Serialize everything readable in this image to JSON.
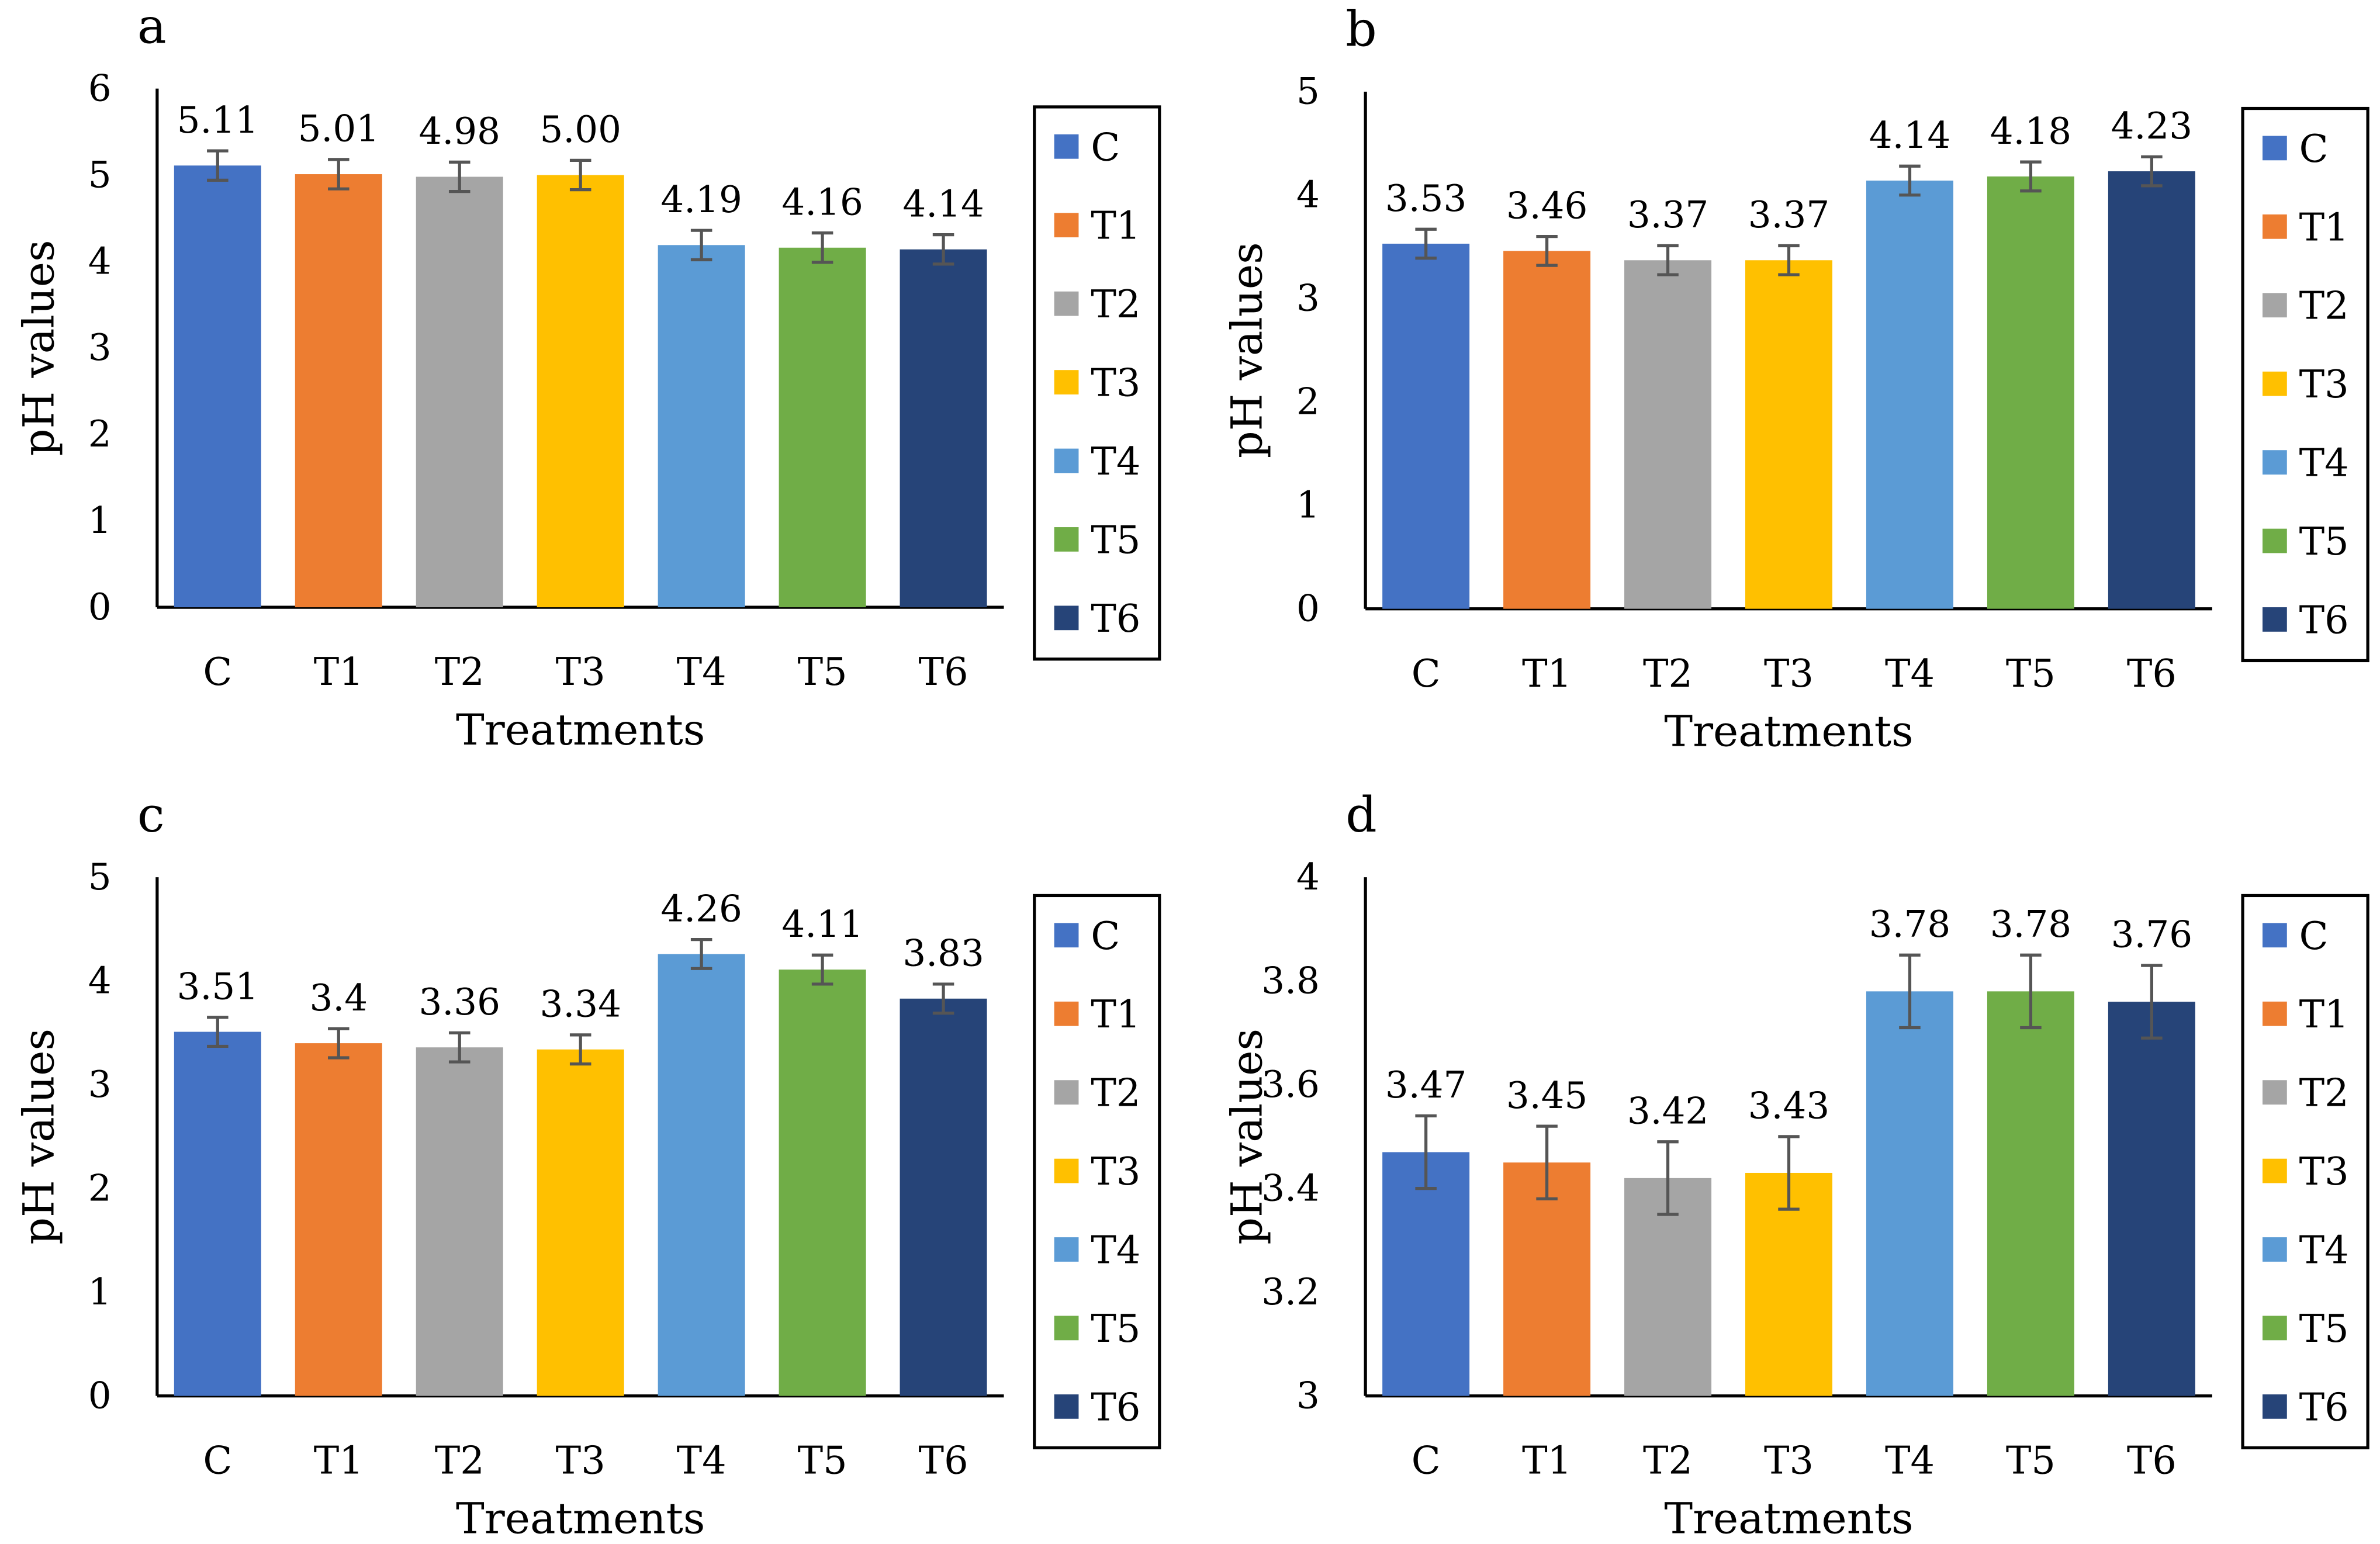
{
  "colors": {
    "C": "#4472C4",
    "T1": "#ED7D31",
    "T2": "#A5A5A5",
    "T3": "#FFC000",
    "T4": "#5B9BD5",
    "T5": "#70AD47",
    "T6": "#264478",
    "error": "#555555"
  },
  "chart_data": [
    {
      "type": "bar",
      "panel": "a",
      "title": "",
      "xlabel": "Treatments",
      "ylabel": "pH values",
      "categories": [
        "C",
        "T1",
        "T2",
        "T3",
        "T4",
        "T5",
        "T6"
      ],
      "values": [
        5.11,
        5.01,
        4.98,
        5.0,
        4.19,
        4.16,
        4.14
      ],
      "labels": [
        "5.11",
        "5.01",
        "4.98",
        "5.00",
        "4.19",
        "4.16",
        "4.14"
      ],
      "error": [
        0.17,
        0.17,
        0.17,
        0.17,
        0.17,
        0.17,
        0.17
      ],
      "ylim": [
        0,
        6
      ],
      "yticks": [
        "0",
        "1",
        "2",
        "3",
        "4",
        "5",
        "6"
      ],
      "legend": [
        "C",
        "T1",
        "T2",
        "T3",
        "T4",
        "T5",
        "T6"
      ],
      "legend_position": "right"
    },
    {
      "type": "bar",
      "panel": "b",
      "title": "",
      "xlabel": "Treatments",
      "ylabel": "pH values",
      "categories": [
        "C",
        "T1",
        "T2",
        "T3",
        "T4",
        "T5",
        "T6"
      ],
      "values": [
        3.53,
        3.46,
        3.37,
        3.37,
        4.14,
        4.18,
        4.23
      ],
      "labels": [
        "3.53",
        "3.46",
        "3.37",
        "3.37",
        "4.14",
        "4.18",
        "4.23"
      ],
      "error": [
        0.14,
        0.14,
        0.14,
        0.14,
        0.14,
        0.14,
        0.14
      ],
      "ylim": [
        0,
        5
      ],
      "yticks": [
        "0",
        "1",
        "2",
        "3",
        "4",
        "5"
      ],
      "legend": [
        "C",
        "T1",
        "T2",
        "T3",
        "T4",
        "T5",
        "T6"
      ],
      "legend_position": "right"
    },
    {
      "type": "bar",
      "panel": "c",
      "title": "",
      "xlabel": "Treatments",
      "ylabel": "pH values",
      "categories": [
        "C",
        "T1",
        "T2",
        "T3",
        "T4",
        "T5",
        "T6"
      ],
      "values": [
        3.51,
        3.4,
        3.36,
        3.34,
        4.26,
        4.11,
        3.83
      ],
      "labels": [
        "3.51",
        "3.4",
        "3.36",
        "3.34",
        "4.26",
        "4.11",
        "3.83"
      ],
      "error": [
        0.14,
        0.14,
        0.14,
        0.14,
        0.14,
        0.14,
        0.14
      ],
      "ylim": [
        0,
        5
      ],
      "yticks": [
        "0",
        "1",
        "2",
        "3",
        "4",
        "5"
      ],
      "legend": [
        "C",
        "T1",
        "T2",
        "T3",
        "T4",
        "T5",
        "T6"
      ],
      "legend_position": "right"
    },
    {
      "type": "bar",
      "panel": "d",
      "title": "",
      "xlabel": "Treatments",
      "ylabel": "pH values",
      "categories": [
        "C",
        "T1",
        "T2",
        "T3",
        "T4",
        "T5",
        "T6"
      ],
      "values": [
        3.47,
        3.45,
        3.42,
        3.43,
        3.78,
        3.78,
        3.76
      ],
      "labels": [
        "3.47",
        "3.45",
        "3.42",
        "3.43",
        "3.78",
        "3.78",
        "3.76"
      ],
      "error": [
        0.07,
        0.07,
        0.07,
        0.07,
        0.07,
        0.07,
        0.07
      ],
      "ylim": [
        3,
        4
      ],
      "yticks": [
        "3",
        "3.2",
        "3.4",
        "3.6",
        "3.8",
        "4"
      ],
      "legend": [
        "C",
        "T1",
        "T2",
        "T3",
        "T4",
        "T5",
        "T6"
      ],
      "legend_position": "right"
    }
  ]
}
